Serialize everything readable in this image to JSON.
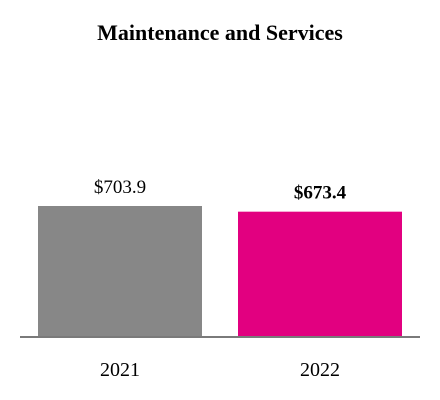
{
  "chart_data": {
    "type": "bar",
    "title": "Maintenance and Services",
    "xlabel": "",
    "ylabel": "",
    "categories": [
      "2021",
      "2022"
    ],
    "values": [
      703.9,
      673.4
    ],
    "data_labels": [
      "$703.9",
      "$673.4"
    ],
    "highlight_index": 1,
    "bar_colors": [
      "#878787",
      "#e20080"
    ],
    "axis_color": "#7a7a7a",
    "grid": false,
    "legend": "none"
  }
}
